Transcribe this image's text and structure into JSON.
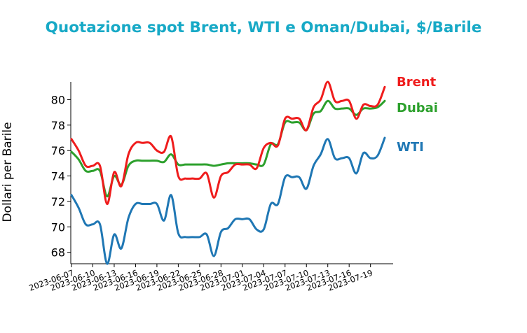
{
  "chart_data": {
    "type": "line",
    "title": "Quotazione spot Brent, WTI e Oman/Dubai, $/Barile",
    "xlabel": "",
    "ylabel": "Dollari per Barile",
    "ylim": [
      67.1,
      81.4
    ],
    "yticks": [
      68,
      70,
      72,
      74,
      76,
      78,
      80
    ],
    "x_tick_labels": [
      "2023-06-07",
      "2023-06-10",
      "2023-06-13",
      "2023-06-16",
      "2023-06-19",
      "2023-06-22",
      "2023-06-25",
      "2023-06-28",
      "2023-07-01",
      "2023-07-04",
      "2023-07-07",
      "2023-07-10",
      "2023-07-13",
      "2023-07-16",
      "2023-07-19"
    ],
    "x": [
      "2023-06-07",
      "2023-06-08",
      "2023-06-09",
      "2023-06-10",
      "2023-06-11",
      "2023-06-12",
      "2023-06-13",
      "2023-06-14",
      "2023-06-15",
      "2023-06-16",
      "2023-06-17",
      "2023-06-18",
      "2023-06-19",
      "2023-06-20",
      "2023-06-21",
      "2023-06-22",
      "2023-06-23",
      "2023-06-24",
      "2023-06-25",
      "2023-06-26",
      "2023-06-27",
      "2023-06-28",
      "2023-06-29",
      "2023-06-30",
      "2023-07-01",
      "2023-07-02",
      "2023-07-03",
      "2023-07-04",
      "2023-07-05",
      "2023-07-06",
      "2023-07-07",
      "2023-07-08",
      "2023-07-09",
      "2023-07-10",
      "2023-07-11",
      "2023-07-12",
      "2023-07-13",
      "2023-07-14",
      "2023-07-15",
      "2023-07-16",
      "2023-07-17",
      "2023-07-18",
      "2023-07-19",
      "2023-07-20",
      "2023-07-21"
    ],
    "series": [
      {
        "name": "Brent",
        "color": "#ef1c1c",
        "values": [
          76.9,
          76.0,
          74.8,
          74.8,
          74.8,
          71.8,
          74.3,
          73.2,
          75.7,
          76.6,
          76.6,
          76.6,
          76.0,
          75.9,
          77.1,
          74.0,
          73.8,
          73.8,
          73.8,
          74.2,
          72.3,
          74.0,
          74.3,
          74.9,
          74.9,
          74.9,
          74.6,
          76.2,
          76.6,
          76.4,
          78.5,
          78.5,
          78.5,
          77.6,
          79.4,
          80.0,
          81.4,
          79.9,
          79.9,
          79.9,
          78.5,
          79.6,
          79.5,
          79.6,
          81.0
        ]
      },
      {
        "name": "Dubai",
        "color": "#2ca02c",
        "values": [
          75.9,
          75.3,
          74.4,
          74.4,
          74.4,
          72.4,
          74.0,
          73.3,
          74.8,
          75.2,
          75.2,
          75.2,
          75.2,
          75.1,
          75.7,
          74.9,
          74.9,
          74.9,
          74.9,
          74.9,
          74.8,
          74.9,
          75.0,
          75.0,
          75.0,
          75.0,
          74.9,
          74.9,
          76.5,
          76.5,
          78.2,
          78.2,
          78.2,
          77.6,
          78.9,
          79.1,
          79.9,
          79.3,
          79.3,
          79.3,
          78.8,
          79.3,
          79.3,
          79.4,
          79.9
        ]
      },
      {
        "name": "WTI",
        "color": "#1f77b4",
        "values": [
          72.5,
          71.5,
          70.2,
          70.2,
          70.2,
          67.1,
          69.4,
          68.3,
          70.7,
          71.8,
          71.8,
          71.8,
          71.8,
          70.5,
          72.5,
          69.5,
          69.2,
          69.2,
          69.2,
          69.4,
          67.7,
          69.6,
          69.9,
          70.6,
          70.6,
          70.6,
          69.8,
          69.8,
          71.8,
          71.8,
          73.9,
          73.9,
          73.9,
          73.0,
          74.8,
          75.7,
          76.9,
          75.4,
          75.4,
          75.4,
          74.2,
          75.8,
          75.4,
          75.6,
          77.0
        ]
      }
    ],
    "legend": "series labels at right end of lines",
    "grid": false
  }
}
